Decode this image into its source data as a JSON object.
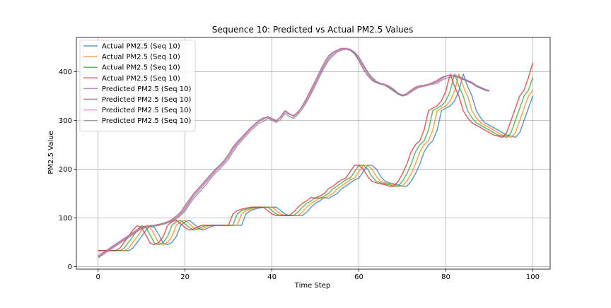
{
  "chart_data": {
    "type": "line",
    "title": "Sequence 10: Predicted vs Actual PM2.5 Values",
    "xlabel": "Time Step",
    "ylabel": "PM2.5 Value",
    "xlim": [
      -5,
      104
    ],
    "ylim": [
      -5,
      470
    ],
    "xticks": [
      0,
      20,
      40,
      60,
      80,
      100
    ],
    "yticks": [
      0,
      100,
      200,
      300,
      400
    ],
    "grid": true,
    "legend_position": "upper left",
    "series": [
      {
        "name": "Actual PM2.5 (Seq 10)",
        "color": "#1f77b4",
        "values": [
          33,
          33,
          33,
          33,
          33,
          33,
          33,
          33,
          38,
          50,
          62,
          75,
          84,
          80,
          65,
          48,
          45,
          50,
          62,
          85,
          92,
          95,
          88,
          80,
          75,
          78,
          82,
          85,
          85,
          85,
          85,
          85,
          85,
          85,
          108,
          115,
          118,
          120,
          122,
          122,
          122,
          122,
          115,
          108,
          105,
          105,
          105,
          105,
          112,
          122,
          130,
          135,
          142,
          140,
          145,
          150,
          160,
          165,
          172,
          178,
          182,
          195,
          208,
          208,
          200,
          185,
          175,
          172,
          170,
          168,
          165,
          165,
          175,
          190,
          210,
          235,
          250,
          258,
          280,
          320,
          325,
          330,
          340,
          360,
          395,
          370,
          350,
          320,
          305,
          295,
          290,
          285,
          280,
          275,
          270,
          268,
          265,
          275,
          300,
          325,
          350
        ]
      },
      {
        "name": "Actual PM2.5 (Seq 10)",
        "color": "#ff7f0e",
        "values": [
          33,
          33,
          33,
          33,
          33,
          33,
          33,
          38,
          50,
          62,
          75,
          84,
          80,
          65,
          48,
          45,
          50,
          62,
          85,
          92,
          95,
          88,
          80,
          75,
          78,
          82,
          85,
          85,
          85,
          85,
          85,
          85,
          85,
          108,
          115,
          118,
          120,
          122,
          122,
          122,
          122,
          115,
          108,
          105,
          105,
          105,
          105,
          112,
          122,
          130,
          135,
          142,
          140,
          145,
          150,
          160,
          165,
          172,
          178,
          182,
          195,
          208,
          208,
          200,
          185,
          175,
          172,
          170,
          168,
          165,
          165,
          175,
          190,
          210,
          235,
          250,
          258,
          280,
          320,
          325,
          330,
          340,
          360,
          395,
          370,
          350,
          320,
          305,
          295,
          290,
          285,
          280,
          275,
          270,
          268,
          265,
          275,
          300,
          325,
          350,
          362
        ]
      },
      {
        "name": "Actual PM2.5 (Seq 10)",
        "color": "#2ca02c",
        "values": [
          33,
          33,
          33,
          33,
          33,
          33,
          38,
          50,
          62,
          75,
          84,
          80,
          65,
          48,
          45,
          50,
          62,
          85,
          92,
          95,
          88,
          80,
          75,
          78,
          82,
          85,
          85,
          85,
          85,
          85,
          85,
          85,
          108,
          115,
          118,
          120,
          122,
          122,
          122,
          122,
          115,
          108,
          105,
          105,
          105,
          105,
          112,
          122,
          130,
          135,
          142,
          140,
          145,
          150,
          160,
          165,
          172,
          178,
          182,
          195,
          208,
          208,
          200,
          185,
          175,
          172,
          170,
          168,
          165,
          165,
          175,
          190,
          210,
          235,
          250,
          258,
          280,
          320,
          325,
          330,
          340,
          360,
          395,
          370,
          350,
          320,
          305,
          295,
          290,
          285,
          280,
          275,
          270,
          268,
          265,
          275,
          300,
          325,
          350,
          362,
          388
        ]
      },
      {
        "name": "Actual PM2.5 (Seq 10)",
        "color": "#d62728",
        "values": [
          33,
          33,
          33,
          33,
          33,
          38,
          50,
          62,
          75,
          84,
          80,
          65,
          48,
          45,
          50,
          62,
          85,
          92,
          95,
          88,
          80,
          75,
          78,
          82,
          85,
          85,
          85,
          85,
          85,
          85,
          85,
          108,
          115,
          118,
          120,
          122,
          122,
          122,
          122,
          115,
          108,
          105,
          105,
          105,
          105,
          112,
          122,
          130,
          135,
          142,
          140,
          145,
          150,
          160,
          165,
          172,
          178,
          182,
          195,
          208,
          208,
          200,
          185,
          175,
          172,
          170,
          168,
          165,
          165,
          175,
          190,
          210,
          235,
          250,
          258,
          280,
          320,
          325,
          330,
          340,
          360,
          395,
          370,
          350,
          320,
          305,
          295,
          290,
          285,
          280,
          275,
          270,
          268,
          265,
          275,
          300,
          325,
          350,
          362,
          388,
          418
        ]
      },
      {
        "name": "Predicted PM2.5 (Seq 10)",
        "color": "#9467bd",
        "values": [
          20,
          26,
          32,
          38,
          44,
          50,
          56,
          62,
          68,
          74,
          80,
          82,
          84,
          85,
          86,
          88,
          91,
          95,
          100,
          108,
          118,
          132,
          145,
          155,
          165,
          175,
          186,
          196,
          205,
          214,
          225,
          240,
          252,
          262,
          272,
          282,
          290,
          298,
          302,
          308,
          304,
          300,
          306,
          318,
          312,
          310,
          318,
          328,
          342,
          358,
          376,
          395,
          412,
          426,
          436,
          442,
          446,
          448,
          446,
          440,
          430,
          415,
          400,
          388,
          380,
          376,
          374,
          370,
          364,
          356,
          352,
          354,
          360,
          366,
          370,
          372,
          374,
          376,
          379,
          385,
          390,
          392,
          393,
          390,
          386,
          382,
          378,
          372,
          368,
          364,
          361
        ]
      },
      {
        "name": "Predicted PM2.5 (Seq 10)",
        "color": "#8c564b",
        "values": [
          22,
          28,
          34,
          40,
          46,
          52,
          58,
          64,
          70,
          76,
          81,
          83,
          84,
          85,
          87,
          89,
          92,
          97,
          104,
          112,
          125,
          138,
          150,
          160,
          170,
          180,
          190,
          200,
          208,
          218,
          230,
          245,
          256,
          265,
          275,
          284,
          292,
          300,
          305,
          306,
          302,
          298,
          308,
          320,
          314,
          308,
          316,
          330,
          346,
          364,
          382,
          400,
          418,
          432,
          440,
          444,
          448,
          447,
          444,
          436,
          422,
          405,
          392,
          382,
          377,
          375,
          372,
          366,
          360,
          354,
          350,
          355,
          362,
          368,
          371,
          372,
          374,
          378,
          382,
          388,
          391,
          393,
          392,
          388,
          384,
          380,
          376,
          370,
          366,
          362,
          360
        ]
      },
      {
        "name": "Predicted PM2.5 (Seq 10)",
        "color": "#e377c2",
        "values": [
          21,
          27,
          33,
          39,
          45,
          51,
          57,
          63,
          69,
          75,
          80,
          82,
          83,
          85,
          86,
          88,
          91,
          95,
          102,
          110,
          121,
          134,
          147,
          157,
          167,
          177,
          188,
          198,
          206,
          216,
          227,
          242,
          254,
          263,
          273,
          283,
          291,
          299,
          303,
          307,
          303,
          299,
          307,
          319,
          313,
          309,
          317,
          329,
          344,
          360,
          378,
          398,
          415,
          429,
          438,
          443,
          447,
          447,
          445,
          438,
          426,
          410,
          396,
          384,
          378,
          375,
          373,
          368,
          362,
          355,
          351,
          354,
          361,
          367,
          370,
          372,
          374,
          377,
          380,
          386,
          390,
          392,
          392,
          389,
          385,
          381,
          377,
          371,
          367,
          363,
          360
        ]
      },
      {
        "name": "Predicted PM2.5 (Seq 10)",
        "color": "#7f7f7f",
        "values": [
          18,
          24,
          30,
          36,
          42,
          48,
          54,
          60,
          66,
          72,
          78,
          80,
          82,
          83,
          85,
          87,
          90,
          93,
          98,
          105,
          114,
          128,
          140,
          150,
          160,
          170,
          182,
          192,
          200,
          210,
          220,
          235,
          248,
          258,
          268,
          278,
          286,
          294,
          298,
          304,
          300,
          296,
          302,
          314,
          308,
          304,
          312,
          324,
          338,
          354,
          372,
          390,
          408,
          422,
          432,
          440,
          444,
          446,
          444,
          438,
          428,
          412,
          398,
          386,
          378,
          374,
          372,
          368,
          362,
          354,
          350,
          352,
          358,
          364,
          368,
          370,
          372,
          374,
          376,
          382,
          386,
          388,
          390,
          388,
          384,
          380,
          376,
          370,
          366,
          362,
          360
        ]
      }
    ]
  }
}
